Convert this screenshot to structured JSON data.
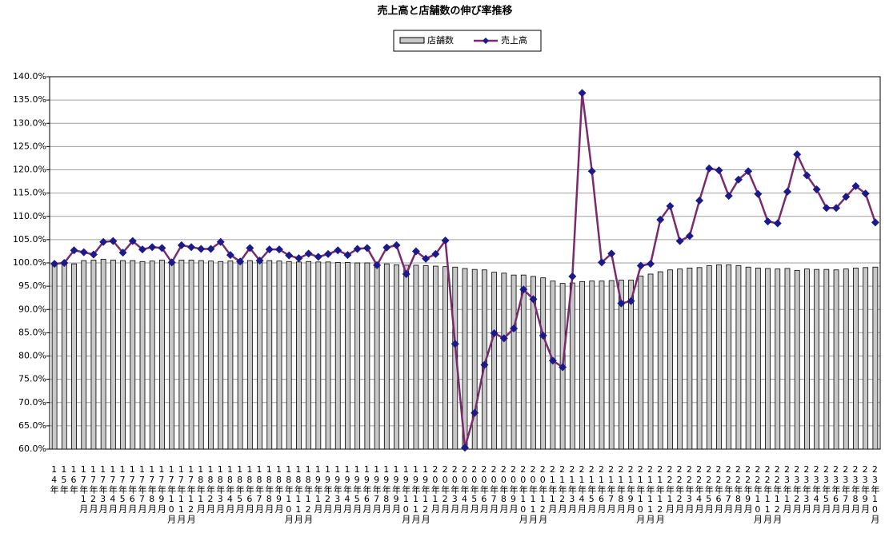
{
  "chart_data": {
    "type": "combo",
    "title": "売上高と店舗数の伸び率推移",
    "categories": [
      "14年",
      "15年",
      "16年",
      "17年1月",
      "17年2月",
      "17年3月",
      "17年4月",
      "17年5月",
      "17年6月",
      "17年7月",
      "17年8月",
      "17年9月",
      "17年10月",
      "17年11月",
      "17年12月",
      "18年1月",
      "18年2月",
      "18年3月",
      "18年4月",
      "18年5月",
      "18年6月",
      "18年7月",
      "18年8月",
      "18年9月",
      "18年10月",
      "18年11月",
      "18年12月",
      "19年1月",
      "19年2月",
      "19年3月",
      "19年4月",
      "19年5月",
      "19年6月",
      "19年7月",
      "19年8月",
      "19年9月",
      "19年10月",
      "19年11月",
      "19年12月",
      "20年1月",
      "20年2月",
      "20年3月",
      "20年4月",
      "20年5月",
      "20年6月",
      "20年7月",
      "20年8月",
      "20年9月",
      "20年10月",
      "20年11月",
      "20年12月",
      "21年1月",
      "21年2月",
      "21年3月",
      "21年4月",
      "21年5月",
      "21年6月",
      "21年7月",
      "21年8月",
      "21年9月",
      "21年10月",
      "21年11月",
      "21年12月",
      "22年1月",
      "22年2月",
      "22年3月",
      "22年4月",
      "22年5月",
      "22年6月",
      "22年7月",
      "22年8月",
      "22年9月",
      "22年10月",
      "22年11月",
      "22年12月",
      "23年1月",
      "23年2月",
      "23年3月",
      "23年4月",
      "23年5月",
      "23年6月",
      "23年7月",
      "23年8月",
      "23年9月",
      "23年10月"
    ],
    "series": [
      {
        "name": "店舗数",
        "type": "bar",
        "color": "#c8c8c8",
        "values": [
          99.8,
          100.0,
          99.8,
          100.5,
          100.6,
          100.8,
          100.6,
          100.5,
          100.5,
          100.3,
          100.4,
          100.6,
          100.3,
          100.6,
          100.6,
          100.5,
          100.4,
          100.3,
          100.4,
          100.4,
          100.5,
          100.4,
          100.5,
          100.4,
          100.3,
          100.2,
          100.3,
          100.2,
          100.2,
          100.1,
          100.1,
          100.0,
          100.0,
          99.9,
          99.8,
          99.6,
          99.5,
          99.5,
          99.4,
          99.3,
          99.2,
          99.1,
          98.8,
          98.6,
          98.5,
          98.0,
          97.8,
          97.4,
          97.4,
          97.1,
          96.8,
          96.1,
          95.6,
          95.7,
          96.0,
          96.1,
          96.1,
          96.2,
          96.3,
          96.3,
          97.2,
          97.6,
          98.1,
          98.5,
          98.7,
          98.9,
          99.0,
          99.4,
          99.6,
          99.6,
          99.4,
          99.1,
          98.9,
          98.8,
          98.7,
          98.8,
          98.4,
          98.7,
          98.6,
          98.6,
          98.5,
          98.7,
          98.9,
          99.0,
          99.1
        ]
      },
      {
        "name": "売上高",
        "type": "line",
        "color": "#7b2a6e",
        "marker_color": "#1a1a8c",
        "values": [
          99.8,
          100.0,
          102.7,
          102.3,
          101.8,
          104.5,
          104.7,
          102.2,
          104.7,
          102.9,
          103.4,
          103.2,
          100.1,
          103.8,
          103.4,
          103.0,
          103.0,
          104.5,
          101.7,
          100.3,
          103.2,
          100.5,
          102.9,
          102.9,
          101.6,
          101.0,
          102.0,
          101.3,
          101.9,
          102.7,
          101.7,
          103.0,
          103.2,
          99.5,
          103.3,
          103.8,
          97.6,
          102.5,
          100.9,
          101.9,
          104.8,
          82.6,
          60.3,
          67.8,
          78.1,
          84.9,
          83.8,
          85.9,
          94.3,
          92.2,
          84.4,
          79.0,
          77.6,
          97.1,
          136.5,
          119.7,
          100.1,
          102.0,
          91.3,
          91.8,
          99.4,
          99.8,
          109.3,
          112.2,
          104.7,
          105.8,
          113.4,
          120.3,
          119.9,
          114.4,
          117.9,
          119.7,
          114.8,
          108.9,
          108.5,
          115.3,
          123.3,
          118.8,
          115.8,
          111.8,
          111.8,
          114.2,
          116.5,
          114.9,
          108.7
        ]
      }
    ],
    "ylim": [
      60,
      140
    ],
    "yticks": [
      {
        "value": 60,
        "label": "60.0%"
      },
      {
        "value": 65,
        "label": "65.0%"
      },
      {
        "value": 70,
        "label": "70.0%"
      },
      {
        "value": 75,
        "label": "75.0%"
      },
      {
        "value": 80,
        "label": "80.0%"
      },
      {
        "value": 85,
        "label": "85.0%"
      },
      {
        "value": 90,
        "label": "90.0%"
      },
      {
        "value": 95,
        "label": "95.0%"
      },
      {
        "value": 100,
        "label": "100.0%"
      },
      {
        "value": 105,
        "label": "105.0%"
      },
      {
        "value": 110,
        "label": "110.0%"
      },
      {
        "value": 115,
        "label": "115.0%"
      },
      {
        "value": 120,
        "label": "120.0%"
      },
      {
        "value": 125,
        "label": "125.0%"
      },
      {
        "value": 130,
        "label": "130.0%"
      },
      {
        "value": 135,
        "label": "135.0%"
      },
      {
        "value": 140,
        "label": "140.0%"
      }
    ],
    "grid": true,
    "legend": "top"
  }
}
